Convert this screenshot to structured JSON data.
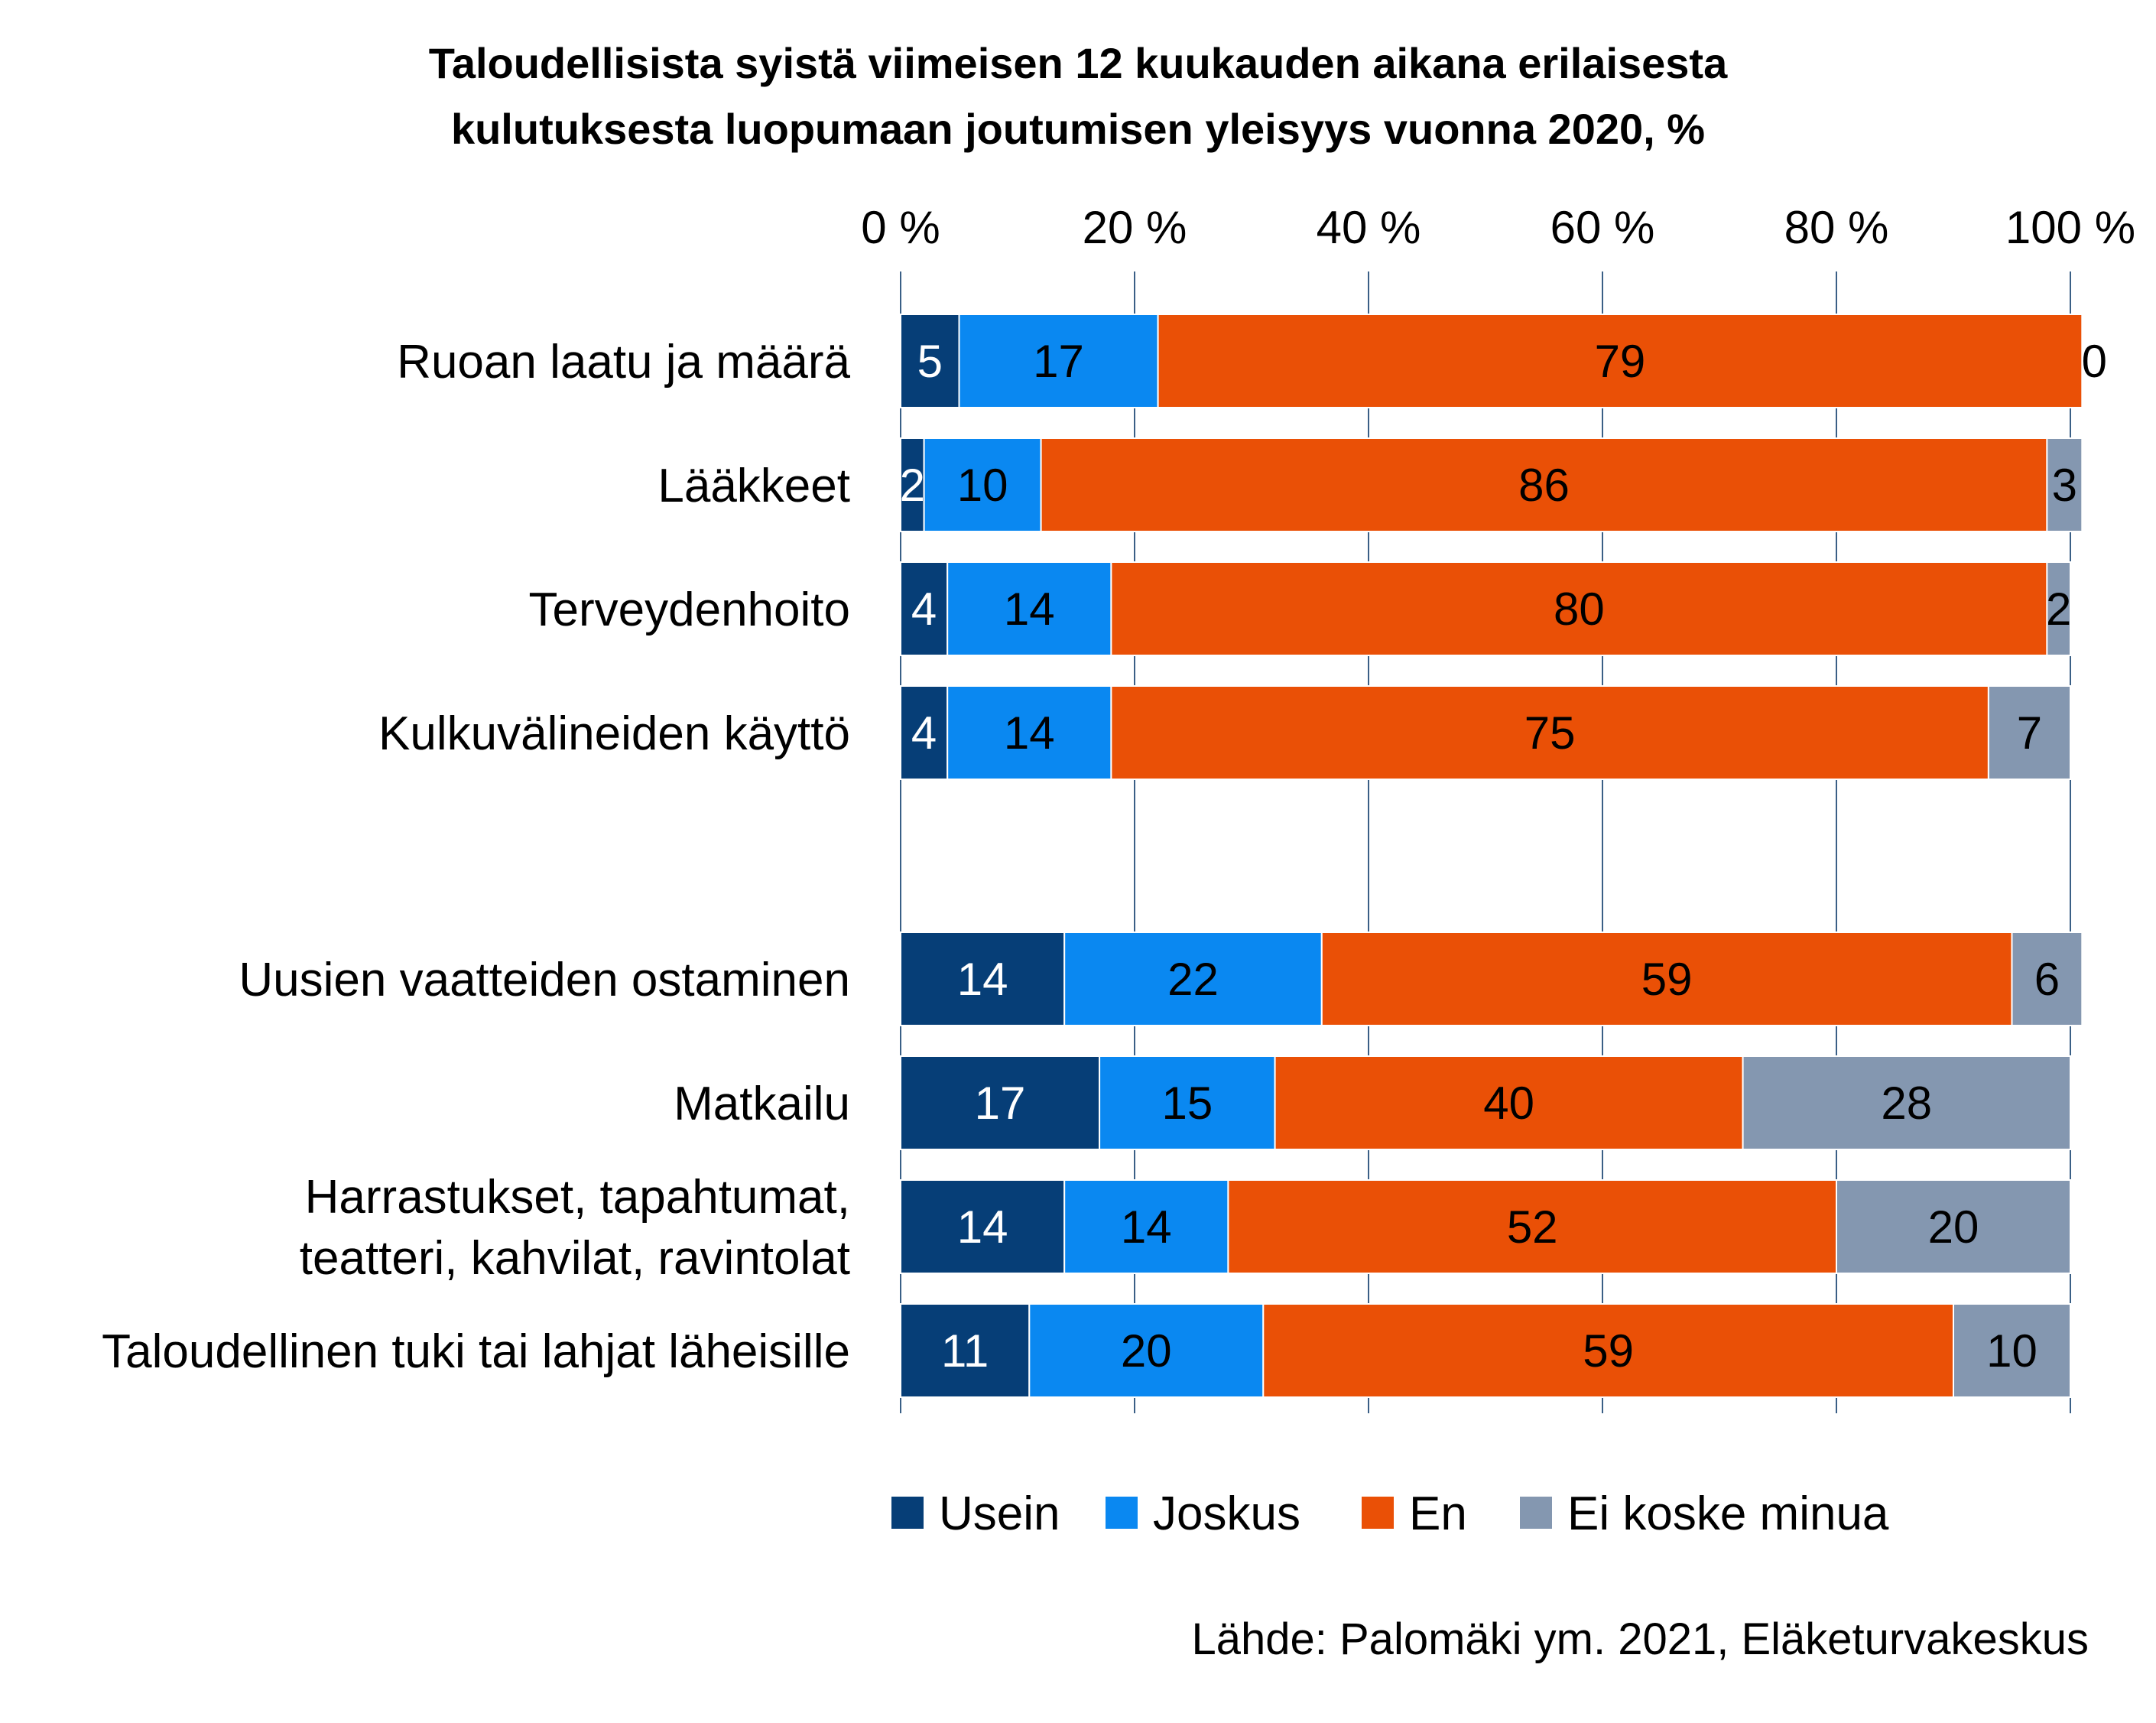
{
  "chart_data": {
    "type": "bar",
    "orientation": "horizontal",
    "stacked": true,
    "title_lines": [
      "Taloudellisista syistä viimeisen 12 kuukauden aikana erilaisesta",
      "kulutuksesta luopumaan joutumisen yleisyys vuonna 2020, %"
    ],
    "categories": [
      [
        "Ruoan laatu ja määrä"
      ],
      [
        "Lääkkeet"
      ],
      [
        "Terveydenhoito"
      ],
      [
        "Kulkuvälineiden käyttö"
      ],
      [
        "Uusien vaatteiden ostaminen"
      ],
      [
        "Matkailu"
      ],
      [
        "Harrastukset, tapahtumat,",
        "teatteri, kahvilat, ravintolat"
      ],
      [
        "Taloudellinen tuki tai lahjat läheisille"
      ]
    ],
    "series": [
      {
        "name": "Usein",
        "color": "#063E77",
        "label_color": "#FFFFFF",
        "values": [
          5,
          2,
          4,
          4,
          14,
          17,
          14,
          11
        ]
      },
      {
        "name": "Joskus",
        "color": "#0A88F1",
        "label_color": "#000000",
        "values": [
          17,
          10,
          14,
          14,
          22,
          15,
          14,
          20
        ]
      },
      {
        "name": "En",
        "color": "#EA5006",
        "label_color": "#000000",
        "values": [
          79,
          86,
          80,
          75,
          59,
          40,
          52,
          59
        ]
      },
      {
        "name": "Ei koske minua",
        "color": "#8497B0",
        "label_color": "#000000",
        "values": [
          0,
          3,
          2,
          7,
          6,
          28,
          20,
          10
        ]
      }
    ],
    "xaxis": {
      "position": "top",
      "ticks": [
        "0 %",
        "20 %",
        "40 %",
        "60 %",
        "80 %",
        "100 %"
      ],
      "range": [
        0,
        100
      ]
    },
    "grid": "vertical",
    "legend_position": "bottom"
  },
  "source": "Lähde: Palomäki ym. 2021, Eläketurvakeskus"
}
